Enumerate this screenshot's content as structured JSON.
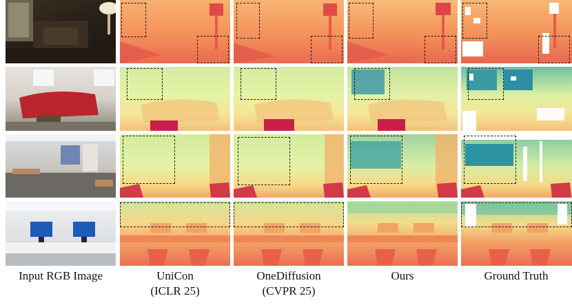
{
  "figure": {
    "columns": [
      {
        "id": "input",
        "line1": "Input RGB Image",
        "line2": ""
      },
      {
        "id": "unicon",
        "line1": "UniCon",
        "line2": "(ICLR 25)"
      },
      {
        "id": "onediffusion",
        "line1": "OneDiffusion",
        "line2": "(CVPR 25)"
      },
      {
        "id": "ours",
        "line1": "Ours",
        "line2": ""
      },
      {
        "id": "gt",
        "line1": "Ground Truth",
        "line2": ""
      }
    ],
    "rows": [
      {
        "id": "living-room-lamp"
      },
      {
        "id": "living-room-red-sofa"
      },
      {
        "id": "classroom"
      },
      {
        "id": "computer-lab"
      }
    ],
    "colors": {
      "near": "#c8204a",
      "mid": "#f28a4f",
      "far_warm": "#f7d27a",
      "far_green": "#d6eea0",
      "farthest": "#2f8fa8",
      "dashed_box": "#1a1a1a"
    }
  }
}
